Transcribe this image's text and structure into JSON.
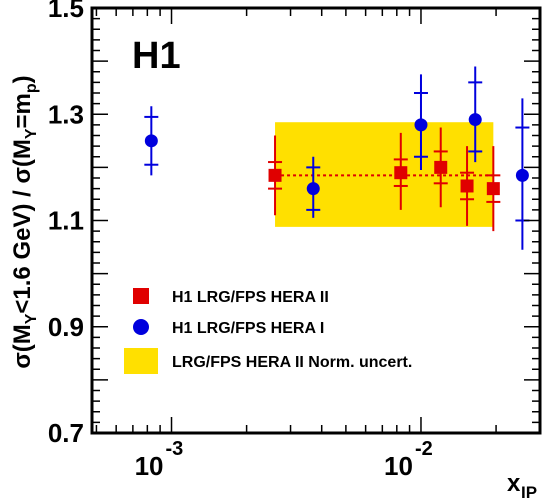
{
  "chart_data": {
    "type": "scatter",
    "experiment_label": "H1",
    "ylabel_parts": [
      "σ(M",
      "Y",
      "<1.6 GeV) / σ(M",
      "Y",
      "=m",
      "p",
      ")"
    ],
    "xlabel": {
      "main": "x",
      "sub": "IP"
    },
    "xscale": "log",
    "xlim": [
      0.00048,
      0.03
    ],
    "ylim": [
      0.7,
      1.5
    ],
    "yticks": [
      {
        "value": 0.7,
        "label": "0.7"
      },
      {
        "value": 0.9,
        "label": "0.9"
      },
      {
        "value": 1.1,
        "label": "1.1"
      },
      {
        "value": 1.3,
        "label": "1.3"
      },
      {
        "value": 1.5,
        "label": "1.5"
      }
    ],
    "xtick_labels": [
      {
        "value": 0.001,
        "base": "10",
        "exp": "-3"
      },
      {
        "value": 0.01,
        "base": "10",
        "exp": "-2"
      }
    ],
    "norm_band": {
      "x_range": [
        0.0026,
        0.0195
      ],
      "y_range": [
        1.088,
        1.285
      ],
      "color": "#ffe000"
    },
    "mean_line": {
      "value": 1.185,
      "x_range": [
        0.0026,
        0.0195
      ],
      "color": "#e00000"
    },
    "series": [
      {
        "name": "H1 LRG/FPS HERA II",
        "marker": "square",
        "color": "#e00000",
        "points": [
          {
            "x": 0.0026,
            "y": 1.185,
            "stat": [
              1.16,
              1.21
            ],
            "total": [
              1.11,
              1.26
            ]
          },
          {
            "x": 0.0083,
            "y": 1.19,
            "stat": [
              1.165,
              1.215
            ],
            "total": [
              1.12,
              1.265
            ]
          },
          {
            "x": 0.012,
            "y": 1.2,
            "stat": [
              1.17,
              1.23
            ],
            "total": [
              1.125,
              1.275
            ]
          },
          {
            "x": 0.0153,
            "y": 1.165,
            "stat": [
              1.14,
              1.19
            ],
            "total": [
              1.09,
              1.24
            ]
          },
          {
            "x": 0.0195,
            "y": 1.16,
            "stat": [
              1.135,
              1.185
            ],
            "total": [
              1.08,
              1.24
            ]
          }
        ]
      },
      {
        "name": "H1 LRG/FPS HERA I",
        "marker": "circle",
        "color": "#0000dd",
        "points": [
          {
            "x": 0.00083,
            "y": 1.25,
            "stat": [
              1.205,
              1.295
            ],
            "total": [
              1.185,
              1.315
            ]
          },
          {
            "x": 0.0037,
            "y": 1.16,
            "stat": [
              1.12,
              1.2
            ],
            "total": [
              1.105,
              1.22
            ]
          },
          {
            "x": 0.01,
            "y": 1.28,
            "stat": [
              1.22,
              1.34
            ],
            "total": [
              1.195,
              1.375
            ]
          },
          {
            "x": 0.0165,
            "y": 1.29,
            "stat": [
              1.23,
              1.36
            ],
            "total": [
              1.21,
              1.39
            ]
          },
          {
            "x": 0.0255,
            "y": 1.185,
            "stat": [
              1.1,
              1.275
            ],
            "total": [
              1.045,
              1.33
            ]
          }
        ]
      }
    ],
    "legend": [
      {
        "label": "H1 LRG/FPS HERA II",
        "kind": "square",
        "color": "#e00000"
      },
      {
        "label": "H1 LRG/FPS HERA I",
        "kind": "circle",
        "color": "#0000dd"
      },
      {
        "label": "LRG/FPS HERA II  Norm. uncert.",
        "kind": "band",
        "color": "#ffe000"
      }
    ]
  }
}
